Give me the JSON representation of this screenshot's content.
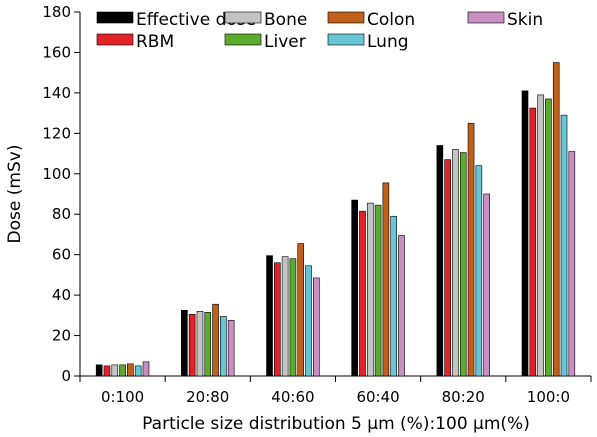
{
  "chart_data": {
    "type": "bar",
    "title": "",
    "xlabel": "Particle size distribution 5 μm (%):100 μm(%)",
    "ylabel": "Dose (mSv)",
    "ylim": [
      0,
      180
    ],
    "yticks": [
      0,
      20,
      40,
      60,
      80,
      100,
      120,
      140,
      160,
      180
    ],
    "grid": false,
    "legend_position": "top",
    "categories": [
      "0:100",
      "20:80",
      "40:60",
      "60:40",
      "80:20",
      "100:0"
    ],
    "series": [
      {
        "name": "Effective dose",
        "color": "#000000",
        "values": [
          5.5,
          32.5,
          59.5,
          87,
          114,
          141
        ]
      },
      {
        "name": "RBM",
        "color": "#e32228",
        "values": [
          5,
          30.5,
          56,
          81.5,
          107,
          132.5
        ]
      },
      {
        "name": "Bone",
        "color": "#c3c3c3",
        "values": [
          5.5,
          32,
          59,
          85.5,
          112,
          139
        ]
      },
      {
        "name": "Liver",
        "color": "#5aab2e",
        "values": [
          5.5,
          31.5,
          58,
          84.5,
          110.5,
          137
        ]
      },
      {
        "name": "Colon",
        "color": "#c0601a",
        "values": [
          6,
          35.5,
          65.5,
          95.5,
          125,
          155
        ]
      },
      {
        "name": "Lung",
        "color": "#68c5d6",
        "values": [
          5,
          29.5,
          54.5,
          79,
          104,
          129
        ]
      },
      {
        "name": "Skin",
        "color": "#c98fc4",
        "values": [
          7,
          27.5,
          48.5,
          69.5,
          90,
          111
        ]
      }
    ]
  }
}
